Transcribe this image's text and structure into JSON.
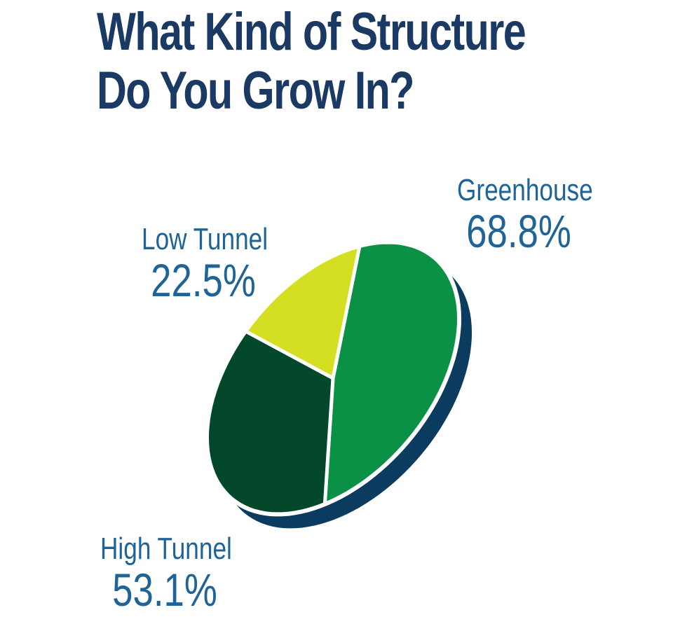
{
  "chart_data": {
    "type": "pie",
    "title": [
      "What Kind of Structure",
      "Do You Grow In?"
    ],
    "slices": [
      {
        "label": "Greenhouse",
        "value": 68.8,
        "value_label": "68.8%",
        "color": "#0b9146"
      },
      {
        "label": "High Tunnel",
        "value": 53.1,
        "value_label": "53.1%",
        "color": "#03482a"
      },
      {
        "label": "Low Tunnel",
        "value": 22.5,
        "value_label": "22.5%",
        "color": "#d5df22"
      }
    ],
    "shadow_color": "#0b3b5e",
    "title_color": "#1a3a64",
    "label_color": "#1f6496"
  }
}
